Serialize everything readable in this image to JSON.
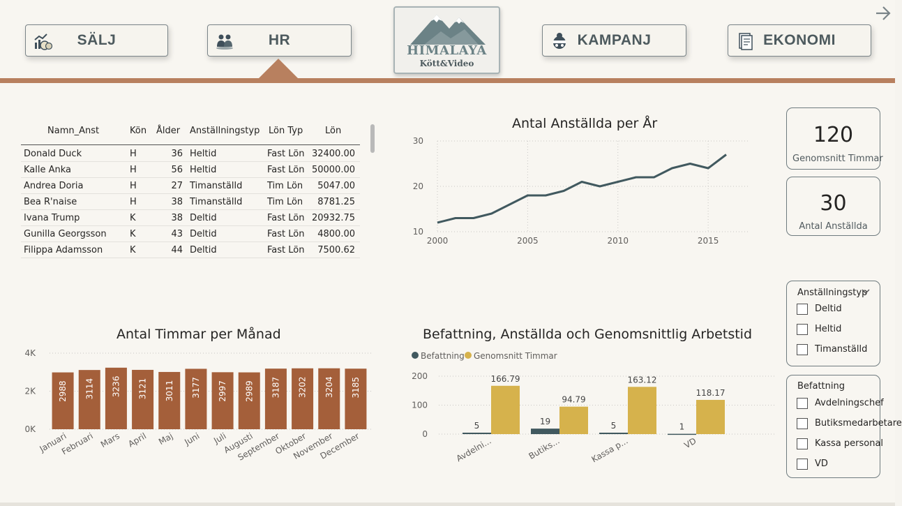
{
  "nav": {
    "buttons": [
      {
        "label": "SÄLJ",
        "icon": "sales-chart-icon"
      },
      {
        "label": "HR",
        "icon": "people-icon"
      },
      {
        "label": "KAMPANJ",
        "icon": "campaign-icon"
      },
      {
        "label": "EKONOMI",
        "icon": "document-icon"
      }
    ],
    "active": "HR",
    "logo_main": "HIMALAYA",
    "logo_sub": "Kött&Video"
  },
  "table": {
    "columns": [
      "Namn_Anst",
      "Kön",
      "Ålder",
      "Anställningstyp",
      "Lön Typ",
      "Lön"
    ],
    "rows": [
      [
        "Donald Duck",
        "H",
        "36",
        "Heltid",
        "Fast Lön",
        "32400.00"
      ],
      [
        "Kalle Anka",
        "H",
        "56",
        "Heltid",
        "Fast Lön",
        "50000.00"
      ],
      [
        "Andrea Doria",
        "H",
        "27",
        "Timanställd",
        "Tim Lön",
        "5047.00"
      ],
      [
        "Bea R'naise",
        "H",
        "38",
        "Timanställd",
        "Tim Lön",
        "8781.25"
      ],
      [
        "Ivana Trump",
        "K",
        "38",
        "Deltid",
        "Fast Lön",
        "20932.75"
      ],
      [
        "Gunilla Georgsson",
        "K",
        "43",
        "Deltid",
        "Fast Lön",
        "4800.00"
      ],
      [
        "Filippa Adamsson",
        "K",
        "44",
        "Deltid",
        "Fast Lön",
        "7500.62"
      ]
    ]
  },
  "cards": [
    {
      "value": "120",
      "label": "Genomsnitt Timmar"
    },
    {
      "value": "30",
      "label": "Antal Anställda"
    }
  ],
  "slicers": [
    {
      "title": "Anställningstyp",
      "options": [
        "Deltid",
        "Heltid",
        "Timanställd"
      ]
    },
    {
      "title": "Befattning",
      "options": [
        "Avdelningschef",
        "Butiksmedarbetare",
        "Kassa personal",
        "VD"
      ]
    }
  ],
  "colors": {
    "brand_brown": "#b8805f",
    "bar_brown": "#a45f3a",
    "slate": "#41595f",
    "gold": "#d6b24c"
  },
  "chart_data": [
    {
      "type": "line",
      "title": "Antal Anställda per År",
      "x": [
        2000,
        2001,
        2002,
        2003,
        2004,
        2005,
        2006,
        2007,
        2008,
        2009,
        2010,
        2011,
        2012,
        2013,
        2014,
        2015,
        2016
      ],
      "values": [
        12,
        13,
        13,
        14,
        16,
        18,
        18,
        19,
        21,
        20,
        21,
        22,
        22,
        24,
        25,
        24,
        27
      ],
      "xticks": [
        "2000",
        "2005",
        "2010",
        "2015"
      ],
      "yticks": [
        "10",
        "20",
        "30"
      ],
      "xlim": [
        2000,
        2016
      ],
      "ylim": [
        10,
        30
      ],
      "grid": true
    },
    {
      "type": "bar",
      "title": "Antal Timmar per Månad",
      "categories": [
        "Januari",
        "Februari",
        "Mars",
        "April",
        "Maj",
        "Juni",
        "Juli",
        "Augusti",
        "September",
        "Oktober",
        "November",
        "December"
      ],
      "values": [
        2988,
        3114,
        3236,
        3121,
        3011,
        3177,
        2997,
        2989,
        3187,
        3202,
        3204,
        3185
      ],
      "yticks": [
        "0K",
        "2K",
        "4K"
      ],
      "ylim": [
        0,
        4000
      ],
      "grid": true
    },
    {
      "type": "bar",
      "title": "Befattning, Anställda och Genomsnittlig Arbetstid",
      "categories": [
        "Avdelni...",
        "Butiks...",
        "Kassa p...",
        "VD"
      ],
      "series": [
        {
          "name": "Befattning",
          "values": [
            5,
            19,
            5,
            1
          ]
        },
        {
          "name": "Genomsnitt Timmar",
          "values": [
            166.79,
            94.79,
            163.12,
            118.17
          ]
        }
      ],
      "value_labels": [
        [
          "5",
          "19",
          "5",
          "1"
        ],
        [
          "166.79",
          "94.79",
          "163.12",
          "118.17"
        ]
      ],
      "yticks": [
        "0",
        "100",
        "200"
      ],
      "ylim": [
        0,
        200
      ],
      "legend": "top-left",
      "grid": true
    }
  ]
}
